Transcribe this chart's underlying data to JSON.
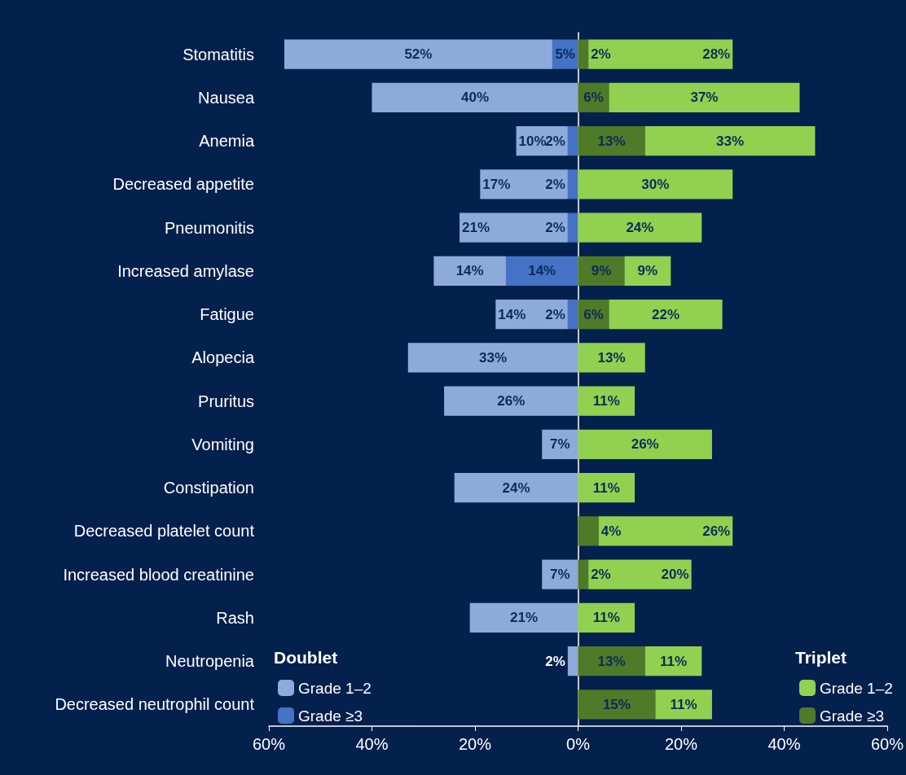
{
  "chart_data": {
    "type": "bar",
    "orientation": "horizontal",
    "categories": [
      "Stomatitis",
      "Nausea",
      "Anemia",
      "Decreased appetite",
      "Pneumonitis",
      "Increased amylase",
      "Fatigue",
      "Alopecia",
      "Pruritus",
      "Vomiting",
      "Constipation",
      "Decreased platelet count",
      "Increased blood creatinine",
      "Rash",
      "Neutropenia",
      "Decreased neutrophil count"
    ],
    "series": [
      {
        "name": "Grade ≥3",
        "color": "#4472c4",
        "values": [
          5,
          null,
          2,
          2,
          2,
          14,
          2,
          null,
          null,
          null,
          null,
          null,
          null,
          null,
          null,
          null
        ],
        "base": [
          -5,
          null,
          -2,
          -2,
          -2,
          -14,
          -2,
          null,
          null,
          null,
          null,
          null,
          null,
          null,
          null,
          null
        ],
        "value_labels": [
          "5%",
          null,
          "2%",
          "2%",
          "2%",
          "14%",
          "2%",
          null,
          null,
          null,
          null,
          null,
          null,
          null,
          null,
          null
        ]
      },
      {
        "name": "Grade 1–2",
        "color": "#8eaadb",
        "values": [
          52,
          40,
          10,
          17,
          21,
          14,
          14,
          33,
          26,
          7,
          24,
          null,
          7,
          21,
          2,
          null
        ],
        "base": [
          -57,
          -40,
          -12,
          -19,
          -23,
          -28,
          -16,
          -33,
          -26,
          -7,
          -24,
          null,
          -7,
          -21,
          -2,
          null
        ],
        "value_labels": [
          "52%",
          "40%",
          "10%",
          "17%",
          "21%",
          "14%",
          "14%",
          "33%",
          "26%",
          "7%",
          "24%",
          null,
          "7%",
          "21%",
          "2%",
          null
        ]
      },
      {
        "name": "Grade ≥3",
        "color": "#4f7a28",
        "values": [
          2,
          6,
          13,
          null,
          null,
          9,
          6,
          null,
          null,
          null,
          null,
          4,
          2,
          null,
          13,
          15
        ],
        "base": [
          0,
          0,
          0,
          null,
          null,
          0,
          0,
          null,
          null,
          null,
          null,
          0,
          0,
          null,
          0,
          0
        ],
        "value_labels": [
          "2%",
          "6%",
          "13%",
          null,
          null,
          "9%",
          "6%",
          null,
          null,
          null,
          null,
          "4%",
          "2%",
          null,
          "13%",
          "15%"
        ]
      },
      {
        "name": "Grade 1–2",
        "color": "#92d050",
        "values": [
          28,
          37,
          33,
          30,
          24,
          9,
          22,
          13,
          11,
          26,
          11,
          26,
          20,
          11,
          11,
          11
        ],
        "base": [
          2,
          6,
          13,
          0,
          0,
          9,
          6,
          0,
          0,
          0,
          0,
          4,
          2,
          0,
          13,
          15
        ],
        "value_labels": [
          "28%",
          "37%",
          "33%",
          "30%",
          "24%",
          "9%",
          "22%",
          "13%",
          "11%",
          "26%",
          "11%",
          "26%",
          "20%",
          "11%",
          "11%",
          "11%"
        ]
      }
    ],
    "xlim": [
      -60,
      60
    ],
    "xticks": [
      {
        "value": -60,
        "label": "60%"
      },
      {
        "value": -40,
        "label": "40%"
      },
      {
        "value": -20,
        "label": "20%"
      },
      {
        "value": 0,
        "label": "0%"
      },
      {
        "value": 20,
        "label": "20%"
      },
      {
        "value": 40,
        "label": "40%"
      },
      {
        "value": 60,
        "label": "60%"
      }
    ],
    "annotations": [
      "Doublet",
      "Triplet"
    ],
    "legend": "bottom"
  }
}
